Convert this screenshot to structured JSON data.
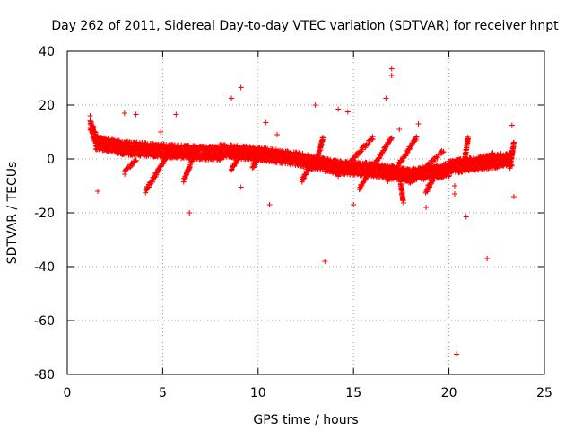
{
  "chart_data": {
    "type": "scatter",
    "title": "Day 262 of 2011, Sidereal Day-to-day VTEC variation (SDTVAR) for receiver hnpt",
    "xlabel": "GPS time / hours",
    "ylabel": "SDTVAR / TECUs",
    "xlim": [
      0,
      25
    ],
    "ylim": [
      -80,
      40
    ],
    "x_ticks": [
      0,
      5,
      10,
      15,
      20,
      25
    ],
    "y_ticks": [
      -80,
      -60,
      -40,
      -20,
      0,
      20,
      40
    ],
    "x_tick_labels": [
      "0",
      "5",
      "10",
      "15",
      "20",
      "25"
    ],
    "y_tick_labels": [
      "-80",
      "-60",
      "-40",
      "-20",
      "0",
      "20",
      "40"
    ],
    "grid": true,
    "marker": "+",
    "color": "#ff0000",
    "series": [
      {
        "name": "SDTVAR",
        "description": "dense band of observations",
        "band_segments": [
          {
            "x": [
              1.2,
              1.5
            ],
            "y": [
              13,
              7
            ]
          },
          {
            "x": [
              1.5,
              3.0
            ],
            "y": [
              6,
              4
            ]
          },
          {
            "x": [
              3.0,
              5.0
            ],
            "y": [
              4,
              3
            ]
          },
          {
            "x": [
              5.0,
              8.0
            ],
            "y": [
              3,
              2
            ]
          },
          {
            "x": [
              8.0,
              10.0
            ],
            "y": [
              3,
              2
            ]
          },
          {
            "x": [
              10.0,
              12.0
            ],
            "y": [
              2,
              0
            ]
          },
          {
            "x": [
              12.0,
              14.0
            ],
            "y": [
              0,
              -3
            ]
          },
          {
            "x": [
              14.0,
              16.0
            ],
            "y": [
              -3,
              -4
            ]
          },
          {
            "x": [
              16.0,
              18.0
            ],
            "y": [
              -4,
              -6
            ]
          },
          {
            "x": [
              18.0,
              20.0
            ],
            "y": [
              -6,
              -4
            ]
          },
          {
            "x": [
              20.0,
              23.3
            ],
            "y": [
              -3,
              0
            ]
          }
        ],
        "ramps": [
          {
            "x": [
              3.0,
              3.6
            ],
            "y": [
              -5,
              0
            ]
          },
          {
            "x": [
              4.1,
              5.3
            ],
            "y": [
              -12,
              2
            ]
          },
          {
            "x": [
              6.1,
              6.7
            ],
            "y": [
              -8,
              2
            ]
          },
          {
            "x": [
              8.6,
              9.1
            ],
            "y": [
              -4,
              2
            ]
          },
          {
            "x": [
              9.7,
              10.3
            ],
            "y": [
              -3,
              3
            ]
          },
          {
            "x": [
              12.3,
              12.9
            ],
            "y": [
              -8,
              0
            ]
          },
          {
            "x": [
              13.0,
              13.4
            ],
            "y": [
              -3,
              8
            ]
          },
          {
            "x": [
              14.2,
              16.0
            ],
            "y": [
              -6,
              8
            ]
          },
          {
            "x": [
              15.3,
              17.0
            ],
            "y": [
              -11,
              8
            ]
          },
          {
            "x": [
              16.8,
              18.3
            ],
            "y": [
              -8,
              8
            ]
          },
          {
            "x": [
              17.4,
              17.6
            ],
            "y": [
              -5,
              -16
            ]
          },
          {
            "x": [
              17.9,
              19.7
            ],
            "y": [
              -9,
              3
            ]
          },
          {
            "x": [
              18.8,
              19.2
            ],
            "y": [
              -12,
              -7
            ]
          },
          {
            "x": [
              20.8,
              21.0
            ],
            "y": [
              -2,
              8
            ]
          },
          {
            "x": [
              22.0,
              22.3
            ],
            "y": [
              -3,
              2
            ]
          },
          {
            "x": [
              23.2,
              23.4
            ],
            "y": [
              -3,
              6
            ]
          }
        ],
        "outliers": [
          {
            "x": 1.2,
            "y": 16
          },
          {
            "x": 1.6,
            "y": -12
          },
          {
            "x": 3.0,
            "y": 17
          },
          {
            "x": 3.6,
            "y": 16.5
          },
          {
            "x": 4.9,
            "y": 10
          },
          {
            "x": 5.7,
            "y": 16.5
          },
          {
            "x": 6.4,
            "y": -20
          },
          {
            "x": 8.6,
            "y": 22.5
          },
          {
            "x": 9.1,
            "y": 26.5
          },
          {
            "x": 9.1,
            "y": -10.5
          },
          {
            "x": 10.4,
            "y": 13.5
          },
          {
            "x": 10.6,
            "y": -17
          },
          {
            "x": 11.0,
            "y": 9
          },
          {
            "x": 13.0,
            "y": 20
          },
          {
            "x": 13.5,
            "y": -38
          },
          {
            "x": 14.2,
            "y": 18.5
          },
          {
            "x": 14.7,
            "y": 17.5
          },
          {
            "x": 15.0,
            "y": -17
          },
          {
            "x": 16.7,
            "y": 22.5
          },
          {
            "x": 17.0,
            "y": 33.5
          },
          {
            "x": 17.0,
            "y": 31
          },
          {
            "x": 17.4,
            "y": 11
          },
          {
            "x": 18.4,
            "y": 13
          },
          {
            "x": 18.8,
            "y": -18
          },
          {
            "x": 20.3,
            "y": -10
          },
          {
            "x": 20.3,
            "y": -13
          },
          {
            "x": 20.4,
            "y": -72.5
          },
          {
            "x": 20.9,
            "y": -21.5
          },
          {
            "x": 22.0,
            "y": -37
          },
          {
            "x": 23.3,
            "y": 12.5
          },
          {
            "x": 23.4,
            "y": -14
          }
        ]
      }
    ]
  }
}
